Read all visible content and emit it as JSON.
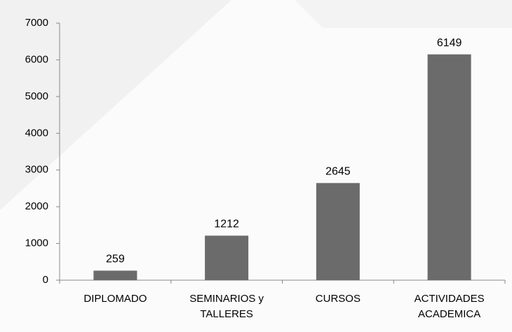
{
  "chart_data": {
    "type": "bar",
    "categories": [
      "DIPLOMADO",
      "SEMINARIOS y TALLERES",
      "CURSOS",
      "ACTIVIDADES ACADEMICA"
    ],
    "values": [
      259,
      1212,
      2645,
      6149
    ],
    "color": "#6b6b6b",
    "ylim": [
      0,
      7000
    ],
    "yticks": [
      0,
      1000,
      2000,
      3000,
      4000,
      5000,
      6000,
      7000
    ],
    "grid": false
  }
}
